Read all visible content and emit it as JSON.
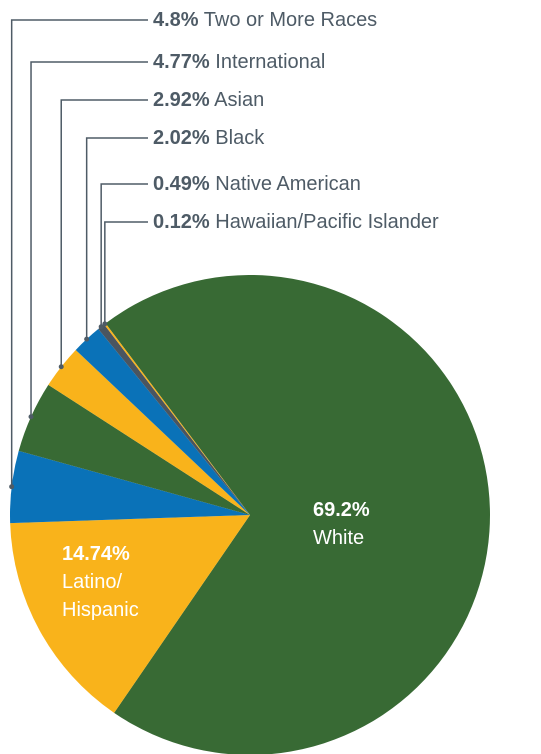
{
  "chart_data": {
    "type": "pie",
    "categories": [
      "White",
      "Latino/ Hispanic",
      "Two or More Races",
      "International",
      "Asian",
      "Black",
      "Native American",
      "Hawaiian/Pacific Islander"
    ],
    "values": [
      69.2,
      14.74,
      4.8,
      4.77,
      2.92,
      2.02,
      0.49,
      0.12
    ],
    "value_labels": [
      "69.2%",
      "14.74%",
      "4.8%",
      "4.77%",
      "2.92%",
      "2.02%",
      "0.49%",
      "0.12%"
    ],
    "colors": [
      "#386a34",
      "#f9b31b",
      "#0a72b8",
      "#386a34",
      "#f9b31b",
      "#0a72b8",
      "#4a5560",
      "#f9b31b"
    ]
  }
}
